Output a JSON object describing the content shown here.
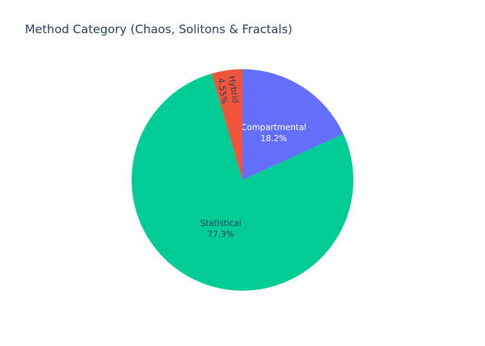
{
  "chart_data": {
    "type": "pie",
    "title": "Method Category (Chaos, Solitons & Fractals)",
    "slices": [
      {
        "label": "Compartmental",
        "percent": 18.2,
        "percent_text": "18.2%",
        "color": "#636efa",
        "text_color": "#ffffff"
      },
      {
        "label": "Statistical",
        "percent": 77.3,
        "percent_text": "77.3%",
        "color": "#00cc96",
        "text_color": "#2a3f5f"
      },
      {
        "label": "Hybrid",
        "percent": 4.5,
        "percent_text": "4.55%",
        "color": "#ef553b",
        "text_color": "#2a3f5f"
      }
    ]
  }
}
